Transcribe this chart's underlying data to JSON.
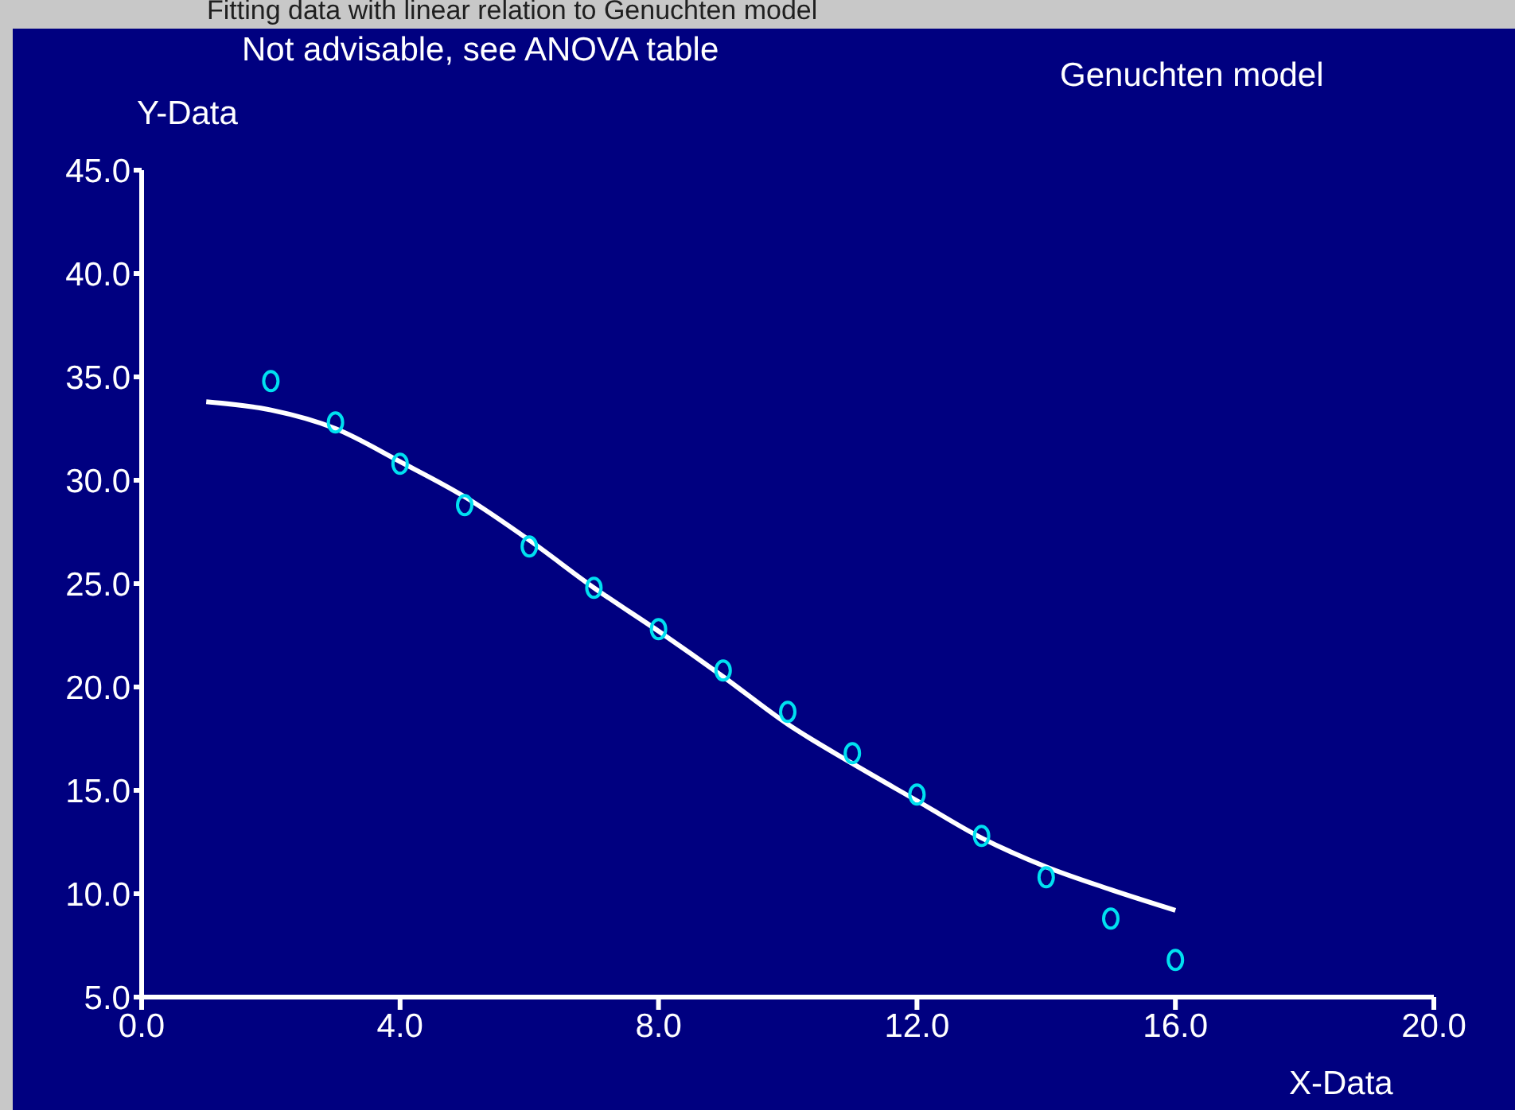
{
  "chart_data": {
    "type": "scatter",
    "title": "Fitting data with linear relation to Genuchten model",
    "annotations": [
      "Not advisable, see ANOVA table",
      "Genuchten model"
    ],
    "xlabel": "X-Data",
    "ylabel": "Y-Data",
    "xlim": [
      0,
      20
    ],
    "ylim": [
      5,
      45
    ],
    "xticks": [
      {
        "value": 0,
        "label": "0.0"
      },
      {
        "value": 4,
        "label": "4.0"
      },
      {
        "value": 8,
        "label": "8.0"
      },
      {
        "value": 12,
        "label": "12.0"
      },
      {
        "value": 16,
        "label": "16.0"
      },
      {
        "value": 20,
        "label": "20.0"
      }
    ],
    "yticks": [
      {
        "value": 5,
        "label": "5.0"
      },
      {
        "value": 10,
        "label": "10.0"
      },
      {
        "value": 15,
        "label": "15.0"
      },
      {
        "value": 20,
        "label": "20.0"
      },
      {
        "value": 25,
        "label": "25.0"
      },
      {
        "value": 30,
        "label": "30.0"
      },
      {
        "value": 35,
        "label": "35.0"
      },
      {
        "value": 40,
        "label": "40.0"
      },
      {
        "value": 45,
        "label": "45.0"
      }
    ],
    "grid": false,
    "legend": false,
    "series": [
      {
        "marker": "circle",
        "color": "#00e0f0",
        "x": [
          2,
          3,
          4,
          5,
          6,
          7,
          8,
          9,
          10,
          11,
          12,
          13,
          14,
          15,
          16
        ],
        "values": [
          34.8,
          32.8,
          30.8,
          28.8,
          26.8,
          24.8,
          22.8,
          20.8,
          18.8,
          16.8,
          14.8,
          12.8,
          10.8,
          8.8,
          6.8
        ]
      },
      {
        "type": "line",
        "marker": "none",
        "line_style": "solid",
        "color": "#ffffff",
        "x": [
          1,
          2,
          3,
          4,
          5,
          6,
          7,
          8,
          9,
          10,
          11,
          12,
          13,
          14,
          15,
          16
        ],
        "values": [
          33.8,
          33.4,
          32.5,
          30.9,
          29.2,
          27.1,
          24.8,
          22.7,
          20.5,
          18.2,
          16.3,
          14.5,
          12.7,
          11.3,
          10.2,
          9.2
        ]
      }
    ]
  }
}
